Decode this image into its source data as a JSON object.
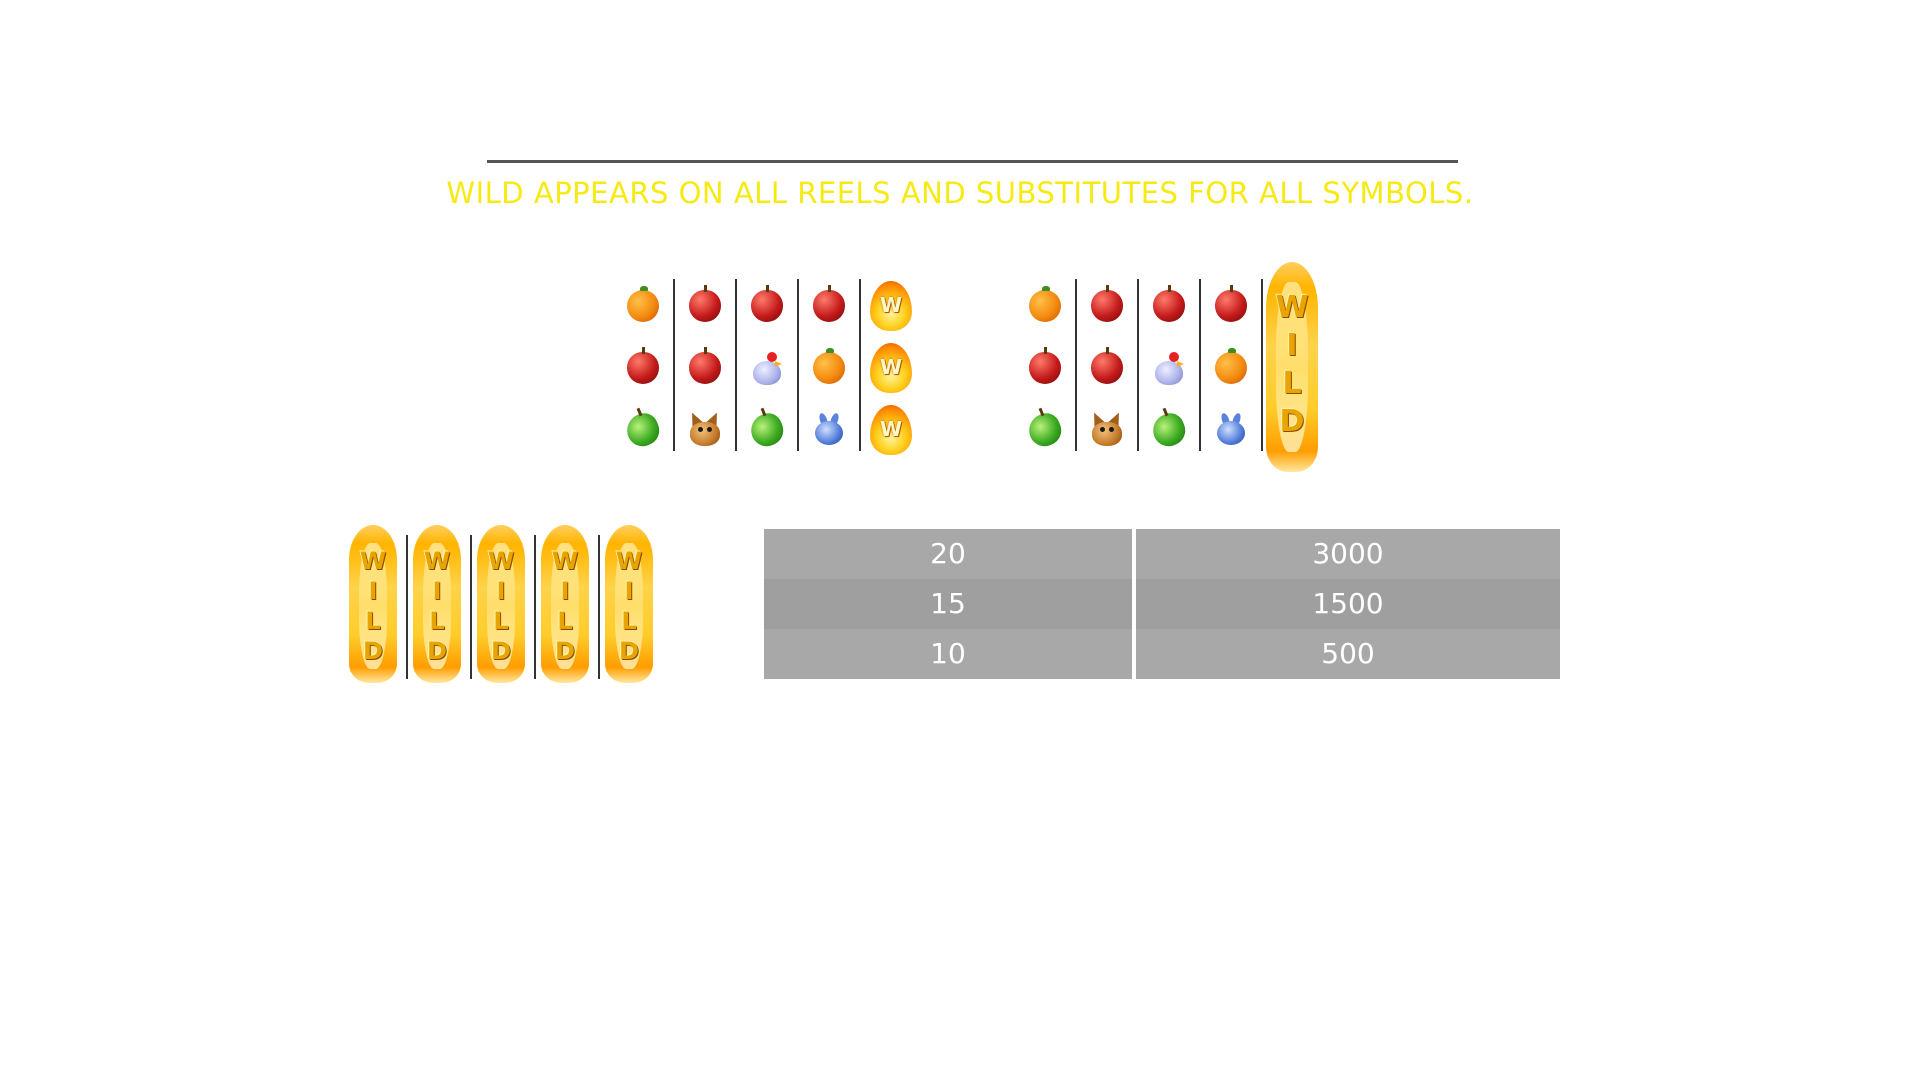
{
  "headline": "WILD APPEARS ON ALL REELS AND SUBSTITUTES FOR ALL SYMBOLS.",
  "colors": {
    "headline": "#f7ea13",
    "divider": "#555555",
    "reel_separator": "#333333",
    "paytable_row_odd": "#a8a8a8",
    "paytable_row_even": "#9f9f9f",
    "paytable_text": "#ffffff",
    "background": "#ffffff"
  },
  "examples": [
    {
      "reels": [
        {
          "symbols": [
            "orange",
            "apple",
            "pear"
          ]
        },
        {
          "symbols": [
            "apple",
            "apple",
            "dog"
          ]
        },
        {
          "symbols": [
            "apple",
            "hen",
            "pear"
          ]
        },
        {
          "symbols": [
            "apple",
            "orange",
            "rabbit"
          ]
        },
        {
          "symbols": [
            "wild-w",
            "wild-w",
            "wild-w"
          ]
        }
      ],
      "wild_letter": "W"
    },
    {
      "reels": [
        {
          "symbols": [
            "orange",
            "apple",
            "pear"
          ]
        },
        {
          "symbols": [
            "apple",
            "apple",
            "dog"
          ]
        },
        {
          "symbols": [
            "apple",
            "hen",
            "pear"
          ]
        },
        {
          "symbols": [
            "apple",
            "orange",
            "rabbit"
          ]
        },
        {
          "symbols": [
            "wild-expanded"
          ]
        }
      ],
      "wild_text": "WILD"
    }
  ],
  "wild_demo": {
    "reels": 5,
    "symbol": "wild-expanded",
    "text": "WILD"
  },
  "paytable": {
    "rows": [
      {
        "count": "20",
        "payout": "3000"
      },
      {
        "count": "15",
        "payout": "1500"
      },
      {
        "count": "10",
        "payout": "500"
      }
    ]
  }
}
